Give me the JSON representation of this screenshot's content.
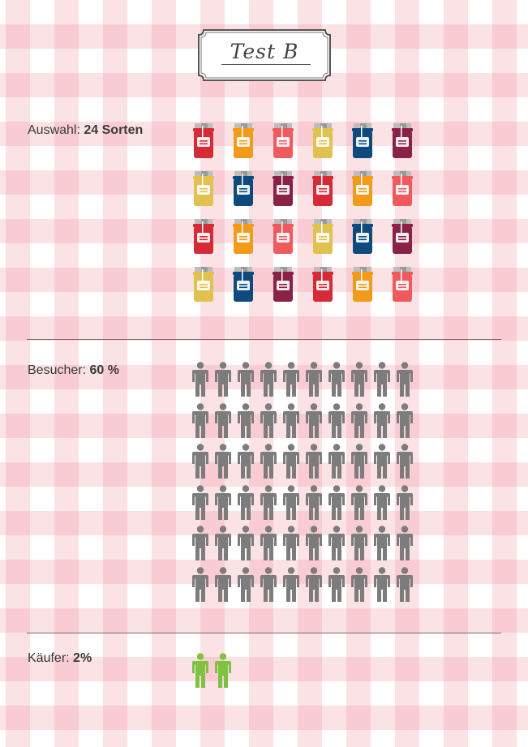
{
  "title": "Test B",
  "sections": {
    "selection": {
      "label_prefix": "Auswahl:",
      "label_value": "24 Sorten",
      "count": 24,
      "colors": [
        "#d42b36",
        "#f39a18",
        "#ef5a5f",
        "#e2c14f",
        "#0f4a7f",
        "#8a2147",
        "#e2c14f",
        "#0f4a7f",
        "#8a2147",
        "#d42b36",
        "#f39a18",
        "#ef5a5f"
      ]
    },
    "visitors": {
      "label_prefix": "Besucher:",
      "label_value": "60 %",
      "count": 60,
      "color": "#7c7c7c"
    },
    "buyers": {
      "label_prefix": "Käufer:",
      "label_value": "2%",
      "count": 2,
      "color": "#7fc241"
    }
  },
  "icons": {
    "jar": "jam-jar-icon",
    "person": "person-icon"
  }
}
